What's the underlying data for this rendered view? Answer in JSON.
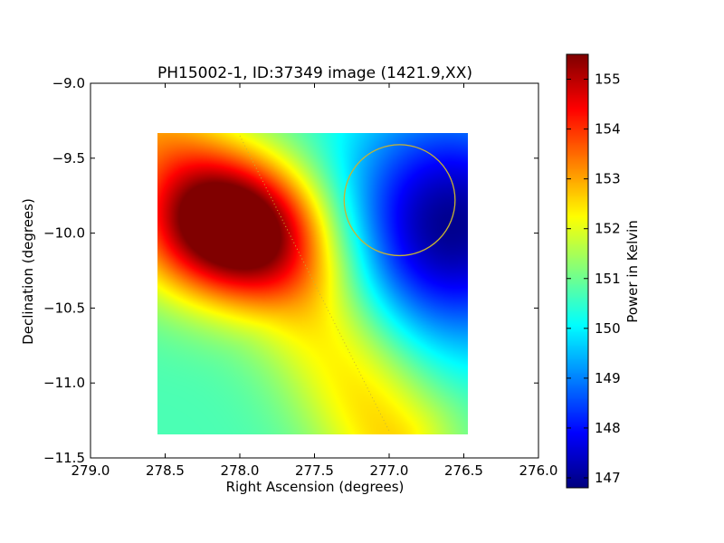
{
  "chart_data": {
    "type": "heatmap",
    "title": "PH15002-1, ID:37349 image (1421.9,XX)",
    "xlabel": "Right Ascension (degrees)",
    "ylabel": "Declination (degrees)",
    "xlim": [
      279.0,
      276.0
    ],
    "ylim": [
      -11.5,
      -9.0
    ],
    "x_ticks": [
      279.0,
      278.5,
      278.0,
      277.5,
      277.0,
      276.5,
      276.0
    ],
    "x_tick_labels": [
      "279.0",
      "278.5",
      "278.0",
      "277.5",
      "277.0",
      "276.5",
      "276.0"
    ],
    "y_ticks": [
      -9.0,
      -9.5,
      -10.0,
      -10.5,
      -11.0,
      -11.5
    ],
    "y_tick_labels": [
      "−9.0",
      "−9.5",
      "−10.0",
      "−10.5",
      "−11.0",
      "−11.5"
    ],
    "image_extent": {
      "ra": [
        278.55,
        276.47
      ],
      "dec": [
        -11.34,
        -9.33
      ]
    },
    "colorbar": {
      "label": "Power in Kelvin",
      "min": 146.8,
      "max": 155.5,
      "ticks": [
        147,
        148,
        149,
        150,
        151,
        152,
        153,
        154,
        155
      ],
      "colormap": "jet"
    },
    "field": {
      "base": 150.7,
      "components": [
        {
          "kind": "peak",
          "ra": 278.07,
          "dec": -9.97,
          "amplitude": 4.6,
          "sigma_ra": 0.45,
          "sigma_dec": 0.33
        },
        {
          "kind": "trough",
          "ra": 276.6,
          "dec": -9.95,
          "amplitude": -3.8,
          "sigma_ra": 0.55,
          "sigma_dec": 0.55
        },
        {
          "kind": "ridge",
          "amplitude": 2.0,
          "width": 0.32,
          "path": [
            [
              278.6,
              -9.33
            ],
            [
              277.55,
              -10.4
            ],
            [
              277.0,
              -11.34
            ]
          ]
        }
      ],
      "value_range": [
        146.8,
        155.5
      ]
    },
    "circle": {
      "ra": 276.93,
      "dec": -9.78,
      "radius_deg": 0.37,
      "color": "#c8b432"
    },
    "dotted_line": {
      "points": [
        [
          278.0,
          -9.35
        ],
        [
          277.0,
          -11.32
        ]
      ],
      "color": "#c8b432"
    }
  }
}
